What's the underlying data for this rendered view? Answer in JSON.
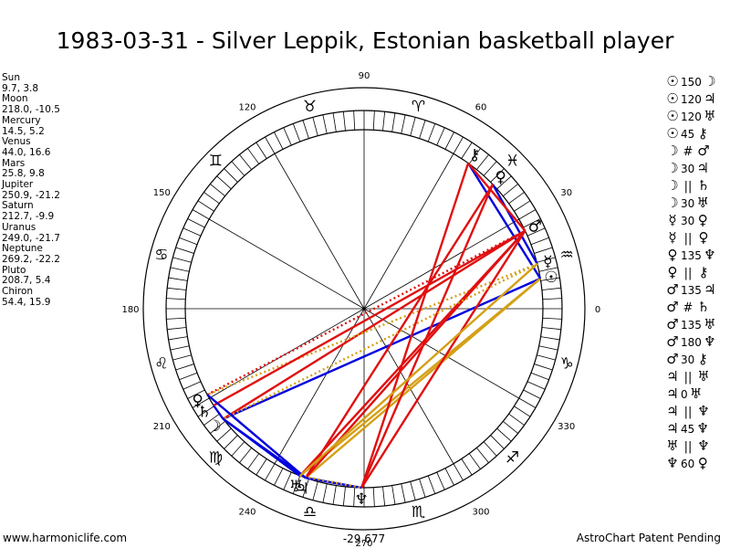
{
  "title": "1983-03-31 - Silver Leppik, Estonian basketball player",
  "planets": [
    {
      "name": "Sun",
      "coords": "9.7, 3.8"
    },
    {
      "name": "Moon",
      "coords": "218.0, -10.5"
    },
    {
      "name": "Mercury",
      "coords": "14.5, 5.2"
    },
    {
      "name": "Venus",
      "coords": "44.0, 16.6"
    },
    {
      "name": "Mars",
      "coords": "25.8, 9.8"
    },
    {
      "name": "Jupiter",
      "coords": "250.9, -21.2"
    },
    {
      "name": "Saturn",
      "coords": "212.7, -9.9"
    },
    {
      "name": "Uranus",
      "coords": "249.0, -21.7"
    },
    {
      "name": "Neptune",
      "coords": "269.2, -22.2"
    },
    {
      "name": "Pluto",
      "coords": "208.7, 5.4"
    },
    {
      "name": "Chiron",
      "coords": "54.4, 15.9"
    }
  ],
  "aspects": [
    {
      "a": "☉",
      "sym": "",
      "num": "150",
      "b": "☽"
    },
    {
      "a": "☉",
      "sym": "",
      "num": "120",
      "b": "♃"
    },
    {
      "a": "☉",
      "sym": "",
      "num": "120",
      "b": "♅"
    },
    {
      "a": "☉",
      "sym": "",
      "num": "45",
      "b": "⚷"
    },
    {
      "a": "☽",
      "sym": "#",
      "num": "",
      "b": "♂"
    },
    {
      "a": "☽",
      "sym": "",
      "num": "30",
      "b": "♃"
    },
    {
      "a": "☽",
      "sym": "||",
      "num": "",
      "b": "♄"
    },
    {
      "a": "☽",
      "sym": "",
      "num": "30",
      "b": "♅"
    },
    {
      "a": "☿",
      "sym": "",
      "num": "30",
      "b": "♀"
    },
    {
      "a": "☿",
      "sym": "||",
      "num": "",
      "b": "♀"
    },
    {
      "a": "♀",
      "sym": "",
      "num": "135",
      "b": "♆"
    },
    {
      "a": "♀",
      "sym": "||",
      "num": "",
      "b": "⚷"
    },
    {
      "a": "♂",
      "sym": "",
      "num": "135",
      "b": "♃"
    },
    {
      "a": "♂",
      "sym": "#",
      "num": "",
      "b": "♄"
    },
    {
      "a": "♂",
      "sym": "",
      "num": "135",
      "b": "♅"
    },
    {
      "a": "♂",
      "sym": "",
      "num": "180",
      "b": "♆"
    },
    {
      "a": "♂",
      "sym": "",
      "num": "30",
      "b": "⚷"
    },
    {
      "a": "♃",
      "sym": "||",
      "num": "",
      "b": "♅"
    },
    {
      "a": "♃",
      "sym": "",
      "num": "0",
      "b": "♅"
    },
    {
      "a": "♃",
      "sym": "||",
      "num": "",
      "b": "♆"
    },
    {
      "a": "♃",
      "sym": "",
      "num": "45",
      "b": "♆"
    },
    {
      "a": "♅",
      "sym": "||",
      "num": "",
      "b": "♆"
    },
    {
      "a": "♆",
      "sym": "",
      "num": "60",
      "b": "♀"
    }
  ],
  "chart": {
    "degree_labels": [
      "0",
      "30",
      "60",
      "90",
      "120",
      "150",
      "180",
      "210",
      "240",
      "270",
      "300",
      "330"
    ],
    "zodiac_glyphs": [
      "♈",
      "♉",
      "♊",
      "♋",
      "♌",
      "♍",
      "♎",
      "♏",
      "♐",
      "♑",
      "♒",
      "♓"
    ],
    "bottom_label": "-29.677",
    "planet_glyphs": [
      {
        "name": "Sun",
        "glyph": "☉",
        "lon": 9.7,
        "lat": 3.8
      },
      {
        "name": "Moon",
        "glyph": "☽",
        "lon": 218.0,
        "lat": -10.5
      },
      {
        "name": "Mercury",
        "glyph": "☿",
        "lon": 14.5,
        "lat": 5.2
      },
      {
        "name": "Venus",
        "glyph": "♀",
        "lon": 44.0,
        "lat": 16.6
      },
      {
        "name": "Mars",
        "glyph": "♂",
        "lon": 25.8,
        "lat": 9.8
      },
      {
        "name": "Jupiter",
        "glyph": "♃",
        "lon": 250.9,
        "lat": -21.2
      },
      {
        "name": "Saturn",
        "glyph": "♄",
        "lon": 212.7,
        "lat": -9.9
      },
      {
        "name": "Uranus",
        "glyph": "♅",
        "lon": 249.0,
        "lat": -21.7
      },
      {
        "name": "Neptune",
        "glyph": "♆",
        "lon": 269.2,
        "lat": -22.2
      },
      {
        "name": "Pluto",
        "glyph": "♀",
        "lon": 208.7,
        "lat": 5.4
      },
      {
        "name": "Chiron",
        "glyph": "⚷",
        "lon": 54.4,
        "lat": 15.9
      }
    ],
    "aspect_lines": [
      {
        "from": "Sun",
        "to": "Moon",
        "color": "#0000dd",
        "style": "solid"
      },
      {
        "from": "Sun",
        "to": "Jupiter",
        "color": "#d4a017",
        "style": "solid"
      },
      {
        "from": "Sun",
        "to": "Uranus",
        "color": "#d4a017",
        "style": "solid"
      },
      {
        "from": "Sun",
        "to": "Chiron",
        "color": "#0000dd",
        "style": "solid"
      },
      {
        "from": "Moon",
        "to": "Mars",
        "color": "#e01010",
        "style": "solid"
      },
      {
        "from": "Moon",
        "to": "Jupiter",
        "color": "#0000dd",
        "style": "solid"
      },
      {
        "from": "Moon",
        "to": "Saturn",
        "color": "#0000dd",
        "style": "solid"
      },
      {
        "from": "Moon",
        "to": "Uranus",
        "color": "#0000dd",
        "style": "solid"
      },
      {
        "from": "Mercury",
        "to": "Venus",
        "color": "#0000dd",
        "style": "solid"
      },
      {
        "from": "Mercury",
        "to": "Pluto",
        "color": "#d4a017",
        "style": "dotted"
      },
      {
        "from": "Venus",
        "to": "Neptune",
        "color": "#e01010",
        "style": "solid"
      },
      {
        "from": "Venus",
        "to": "Jupiter",
        "color": "#e01010",
        "style": "solid"
      },
      {
        "from": "Mars",
        "to": "Jupiter",
        "color": "#e01010",
        "style": "solid"
      },
      {
        "from": "Mars",
        "to": "Saturn",
        "color": "#e01010",
        "style": "solid"
      },
      {
        "from": "Mars",
        "to": "Uranus",
        "color": "#e01010",
        "style": "solid"
      },
      {
        "from": "Mars",
        "to": "Neptune",
        "color": "#e01010",
        "style": "solid"
      },
      {
        "from": "Mars",
        "to": "Chiron",
        "color": "#e01010",
        "style": "solid"
      },
      {
        "from": "Mars",
        "to": "Pluto",
        "color": "#e01010",
        "style": "dotted"
      },
      {
        "from": "Mercury",
        "to": "Moon",
        "color": "#d4a017",
        "style": "dotted"
      },
      {
        "from": "Chiron",
        "to": "Neptune",
        "color": "#e01010",
        "style": "solid"
      },
      {
        "from": "Jupiter",
        "to": "Neptune",
        "color": "#0000dd",
        "style": "solid"
      },
      {
        "from": "Uranus",
        "to": "Neptune",
        "color": "#d4a017",
        "style": "dotted"
      },
      {
        "from": "Jupiter",
        "to": "Pluto",
        "color": "#0000dd",
        "style": "solid"
      },
      {
        "from": "Mercury",
        "to": "Uranus",
        "color": "#d4a017",
        "style": "solid"
      }
    ]
  },
  "footer": {
    "left": "www.harmoniclife.com",
    "right": "AstroChart Patent Pending"
  }
}
